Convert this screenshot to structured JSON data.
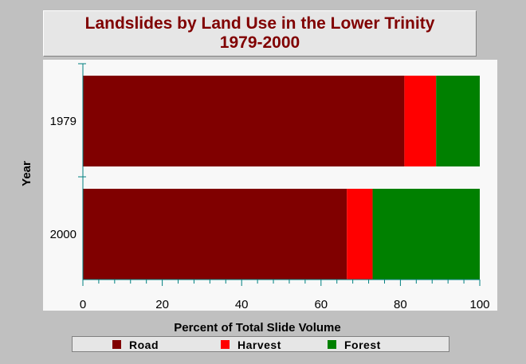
{
  "chart_data": {
    "type": "bar",
    "orientation": "horizontal",
    "stacked": true,
    "title": [
      "Landslides by Land Use in the Lower Trinity",
      "1979-2000"
    ],
    "xlabel": "Percent of Total Slide Volume",
    "ylabel": "Year",
    "categories": [
      "1979",
      "2000"
    ],
    "xlim": [
      0,
      100
    ],
    "xticks": [
      "0",
      "20",
      "40",
      "60",
      "80",
      "100"
    ],
    "grid": false,
    "legend_position": "bottom",
    "series": [
      {
        "name": "Road",
        "color": "#800000",
        "values": [
          81,
          66.5
        ]
      },
      {
        "name": "Harvest",
        "color": "#ff0000",
        "values": [
          8,
          6.5
        ]
      },
      {
        "name": "Forest",
        "color": "#008000",
        "values": [
          11,
          27
        ]
      }
    ]
  },
  "colors": {
    "background": "#c0c0c0",
    "plot_area": "#f8f8f8",
    "title_text": "#800000",
    "axis": "#008080"
  }
}
